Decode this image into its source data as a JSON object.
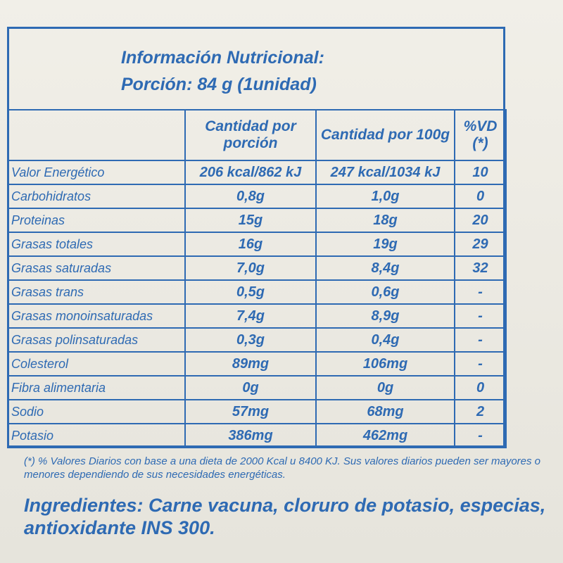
{
  "title": "Información Nutricional:",
  "portion": "Porción: 84 g  (1unidad)",
  "table": {
    "header": [
      "",
      "Cantidad por porción",
      "Cantidad por 100g",
      "%VD (*)"
    ],
    "rows": [
      [
        "Valor Energético",
        "206 kcal/862 kJ",
        "247 kcal/1034 kJ",
        "10"
      ],
      [
        "Carbohidratos",
        "0,8g",
        "1,0g",
        "0"
      ],
      [
        "Proteinas",
        "15g",
        "18g",
        "20"
      ],
      [
        "Grasas totales",
        "16g",
        "19g",
        "29"
      ],
      [
        "Grasas saturadas",
        "7,0g",
        "8,4g",
        "32"
      ],
      [
        "Grasas trans",
        "0,5g",
        "0,6g",
        "-"
      ],
      [
        "Grasas monoinsaturadas",
        "7,4g",
        "8,9g",
        "-"
      ],
      [
        "Grasas polinsaturadas",
        "0,3g",
        "0,4g",
        "-"
      ],
      [
        "Colesterol",
        "89mg",
        "106mg",
        "-"
      ],
      [
        "Fibra alimentaria",
        "0g",
        "0g",
        "0"
      ],
      [
        "Sodio",
        "57mg",
        "68mg",
        "2"
      ],
      [
        "Potasio",
        "386mg",
        "462mg",
        "-"
      ]
    ]
  },
  "footnote": "(*) % Valores Diarios con base a una dieta de 2000 Kcal u 8400 KJ. Sus valores diarios pueden ser mayores o menores dependiendo de sus necesidades energéticas.",
  "ingredients": "Ingredientes: Carne vacuna, cloruro de potasio, especias, antioxidante INS 300."
}
